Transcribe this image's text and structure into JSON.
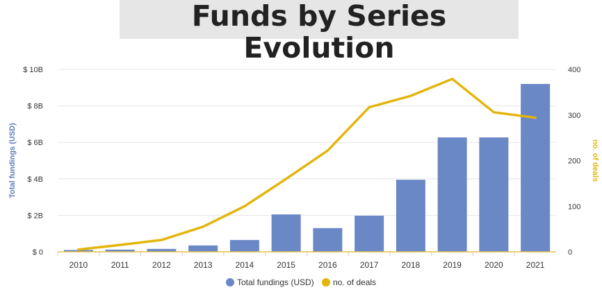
{
  "title": "Funds by Series Evolution",
  "chart_data": {
    "type": "bar",
    "categories": [
      "2010",
      "2011",
      "2012",
      "2013",
      "2014",
      "2015",
      "2016",
      "2017",
      "2018",
      "2019",
      "2020",
      "2021"
    ],
    "series": [
      {
        "name": "Total fundings (USD)",
        "type": "bar",
        "axis": "left",
        "color": "#6a88c6",
        "values": [
          0.1,
          0.12,
          0.16,
          0.35,
          0.65,
          2.05,
          1.3,
          1.98,
          3.95,
          6.27,
          6.27,
          9.2
        ]
      },
      {
        "name": "no. of deals",
        "type": "line",
        "axis": "right",
        "color": "#e3b50b",
        "values": [
          5,
          15,
          26,
          55,
          100,
          160,
          222,
          317,
          342,
          379,
          306,
          294
        ]
      }
    ],
    "ylabel": "Total fundings (USD)",
    "y2label": "no. of deals",
    "ylim": [
      0,
      10
    ],
    "y2lim": [
      0,
      400
    ],
    "yticks": [
      "$ 0",
      "$ 2B",
      "$ 4B",
      "$ 6B",
      "$ 8B",
      "$ 10B"
    ],
    "y2ticks": [
      "0",
      "100",
      "200",
      "300",
      "400"
    ],
    "legend": "bottom",
    "grid": true
  }
}
